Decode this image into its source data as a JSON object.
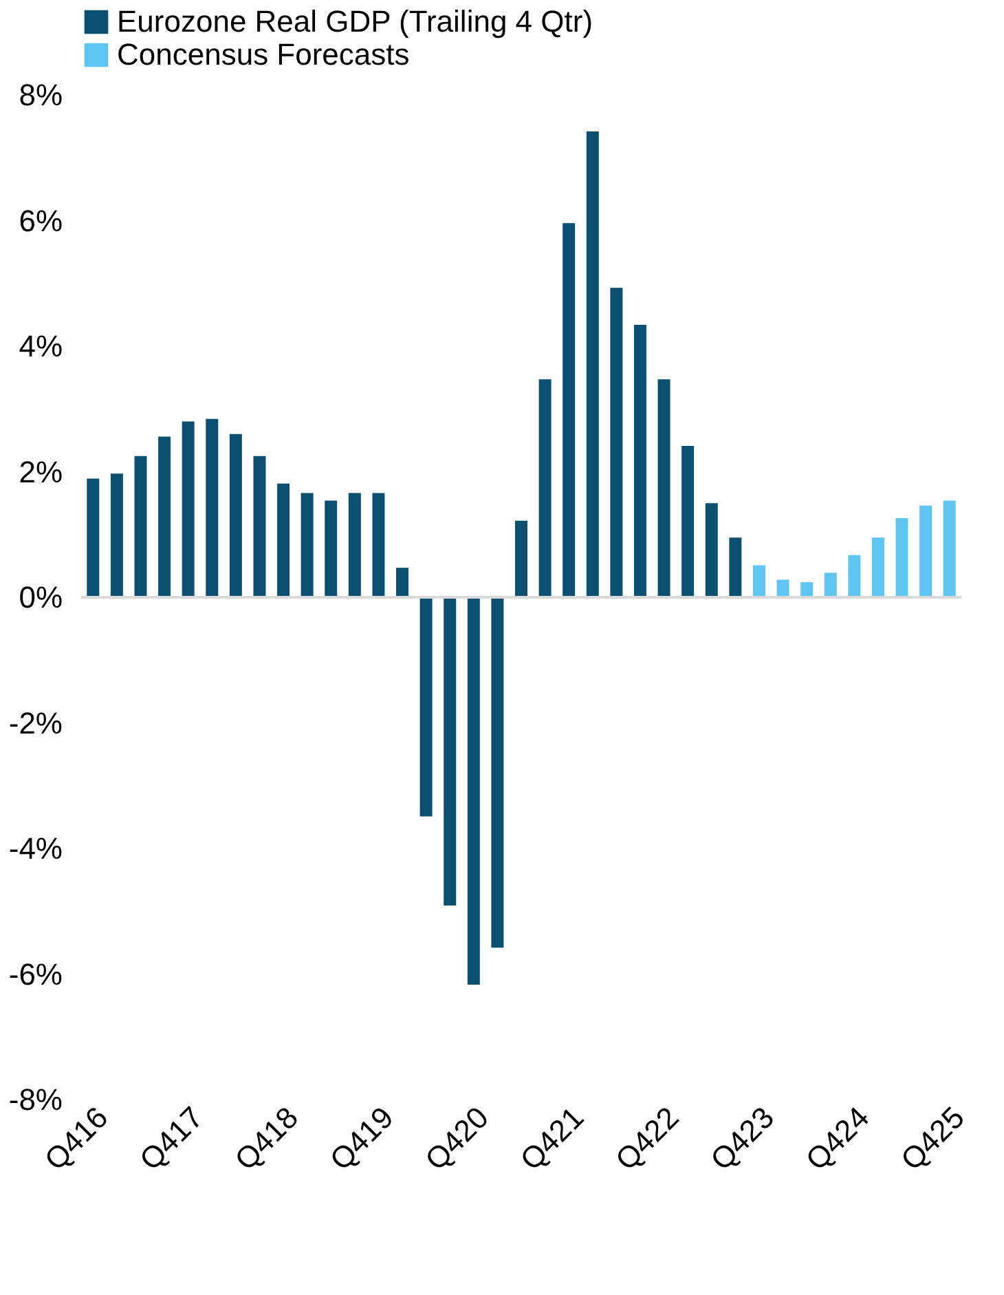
{
  "chart_data": {
    "type": "bar",
    "categories": [
      "Q416",
      null,
      null,
      null,
      "Q417",
      null,
      null,
      null,
      "Q418",
      null,
      null,
      null,
      "Q419",
      null,
      null,
      null,
      "Q420",
      null,
      null,
      null,
      "Q421",
      null,
      null,
      null,
      "Q422",
      null,
      null,
      null,
      "Q423",
      null,
      null,
      null,
      "Q424",
      null,
      null,
      null,
      "Q425"
    ],
    "series": [
      {
        "name": "Eurozone Real GDP (Trailing 4 Qtr)",
        "color": "#0b4f71",
        "values": [
          1.89,
          1.97,
          2.25,
          2.56,
          2.8,
          2.84,
          2.6,
          2.25,
          1.81,
          1.66,
          1.54,
          1.66,
          1.66,
          0.47,
          -3.49,
          -4.91,
          -6.17,
          -5.58,
          1.22,
          3.47,
          5.96,
          7.42,
          4.93,
          4.34,
          3.47,
          2.41,
          1.5,
          0.95,
          null,
          null,
          null,
          null,
          null,
          null,
          null,
          null,
          null
        ]
      },
      {
        "name": "Concensus Forecasts",
        "color": "#5ec4f2",
        "values": [
          null,
          null,
          null,
          null,
          null,
          null,
          null,
          null,
          null,
          null,
          null,
          null,
          null,
          null,
          null,
          null,
          null,
          null,
          null,
          null,
          null,
          null,
          null,
          null,
          null,
          null,
          null,
          null,
          0.51,
          0.28,
          0.24,
          0.39,
          0.67,
          0.95,
          1.26,
          1.46,
          1.54
        ]
      }
    ],
    "ylim": [
      -8,
      8
    ],
    "yticks": [
      {
        "value": -8,
        "label": "-8%"
      },
      {
        "value": -6,
        "label": "-6%"
      },
      {
        "value": -4,
        "label": "-4%"
      },
      {
        "value": -2,
        "label": "-2%"
      },
      {
        "value": 0,
        "label": "0%"
      },
      {
        "value": 2,
        "label": "2%"
      },
      {
        "value": 4,
        "label": "4%"
      },
      {
        "value": 6,
        "label": "6%"
      },
      {
        "value": 8,
        "label": "8%"
      }
    ],
    "legend": "top"
  }
}
